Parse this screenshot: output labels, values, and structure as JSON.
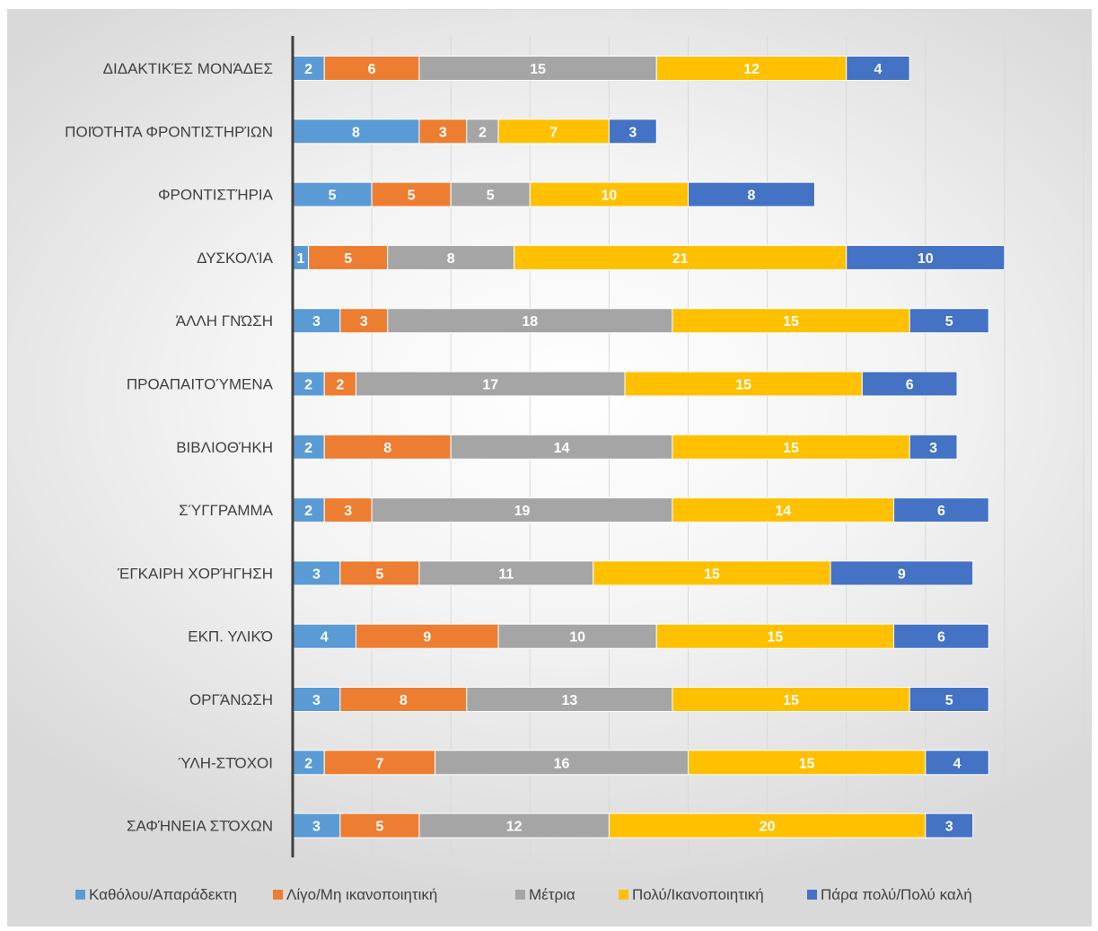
{
  "chart_data": {
    "type": "bar",
    "orientation": "horizontal",
    "stacked": true,
    "title": "",
    "xlabel": "",
    "ylabel": "",
    "xlim": [
      0,
      50
    ],
    "grid": true,
    "legend_position": "bottom",
    "categories": [
      "ΔΙΔΑΚΤΙΚΈΣ ΜΟΝΆΔΕΣ",
      "ΠΟΙΌΤΗΤΑ ΦΡΟΝΤΙΣΤΗΡΊΩΝ",
      "ΦΡΟΝΤΙΣΤΉΡΙΑ",
      "ΔΥΣΚΟΛΊΑ",
      "ΆΛΛΗ ΓΝΏΣΗ",
      "ΠΡΟΑΠΑΙΤΟΎΜΕΝΑ",
      "ΒΙΒΛΙΟΘΉΚΗ",
      "ΣΎΓΓΡΑΜΜΑ",
      "ΈΓΚΑΙΡΗ ΧΟΡΉΓΗΣΗ",
      "ΕΚΠ. ΥΛΙΚΌ",
      "ΟΡΓΆΝΩΣΗ",
      "ΎΛΗ-ΣΤΌΧΟΙ",
      "ΣΑΦΉΝΕΙΑ ΣΤΌΧΩΝ"
    ],
    "series": [
      {
        "name": "Καθόλου/Απαράδεκτη",
        "color": "#5b9bd5",
        "values": [
          2,
          8,
          5,
          1,
          3,
          2,
          2,
          2,
          3,
          4,
          3,
          2,
          3
        ]
      },
      {
        "name": "Λίγο/Μη ικανοποιητική",
        "color": "#ed7d31",
        "values": [
          6,
          3,
          5,
          5,
          3,
          2,
          8,
          3,
          5,
          9,
          8,
          7,
          5
        ]
      },
      {
        "name": "Μέτρια",
        "color": "#a5a5a5",
        "values": [
          15,
          2,
          5,
          8,
          18,
          17,
          14,
          19,
          11,
          10,
          13,
          16,
          12
        ]
      },
      {
        "name": "Πολύ/Ικανοποιητική",
        "color": "#ffc000",
        "values": [
          12,
          7,
          10,
          21,
          15,
          15,
          15,
          14,
          15,
          15,
          15,
          15,
          20
        ]
      },
      {
        "name": "Πάρα πολύ/Πολύ καλή",
        "color": "#4472c4",
        "values": [
          4,
          3,
          8,
          10,
          5,
          6,
          3,
          6,
          9,
          6,
          5,
          4,
          3
        ]
      }
    ]
  }
}
